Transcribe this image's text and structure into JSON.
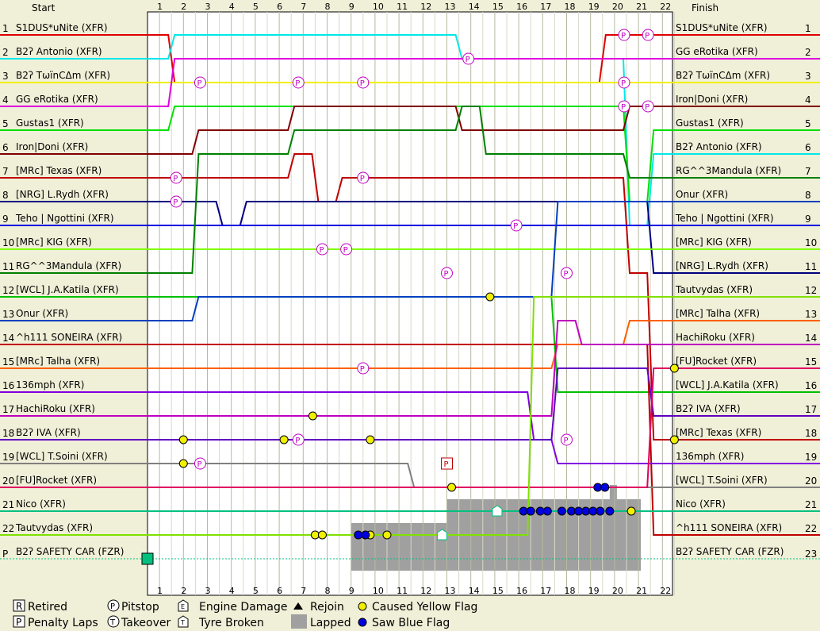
{
  "chart_data": {
    "type": "line",
    "title": "",
    "header": {
      "left": "Start",
      "right": "Finish"
    },
    "laps": [
      "1",
      "2",
      "3",
      "4",
      "5",
      "6",
      "7",
      "8",
      "9",
      "10",
      "11",
      "12",
      "13",
      "14",
      "15",
      "16",
      "17",
      "18",
      "19",
      "20",
      "21",
      "22"
    ],
    "positions": [
      "1",
      "2",
      "3",
      "4",
      "5",
      "6",
      "7",
      "8",
      "9",
      "10",
      "11",
      "12",
      "13",
      "14",
      "15",
      "16",
      "17",
      "18",
      "19",
      "20",
      "21",
      "22"
    ],
    "safety_row": {
      "pos_label": "P",
      "driver": "B2ʔ SAFETY CAR (FZR)",
      "right_end_label": "23"
    },
    "drivers": [
      {
        "name": "S1DUS*uNite (XFR)",
        "color": "#e00000",
        "pos": [
          1,
          3,
          3,
          3,
          3,
          3,
          3,
          3,
          3,
          3,
          3,
          3,
          3,
          3,
          3,
          3,
          3,
          3,
          3,
          1,
          1,
          1,
          1
        ]
      },
      {
        "name": "B2ʔ Antonio (XFR)",
        "color": "#00e8e8",
        "pos": [
          2,
          1,
          1,
          1,
          1,
          1,
          1,
          1,
          1,
          1,
          1,
          1,
          1,
          2,
          2,
          2,
          2,
          2,
          2,
          2,
          9,
          6,
          6
        ]
      },
      {
        "name": "B2ʔ TωïnCΔm (XFR)",
        "color": "#f0f000",
        "pos": [
          3,
          3,
          3,
          3,
          3,
          3,
          3,
          3,
          3,
          3,
          3,
          3,
          3,
          3,
          3,
          3,
          3,
          3,
          3,
          3,
          3,
          3,
          3
        ]
      },
      {
        "name": "GG eRotika (XFR)",
        "color": "#e000e0",
        "pos": [
          4,
          2,
          2,
          2,
          2,
          2,
          2,
          2,
          2,
          2,
          2,
          2,
          2,
          2,
          2,
          2,
          2,
          2,
          2,
          2,
          2,
          2,
          2
        ]
      },
      {
        "name": "Gustas1 (XFR)",
        "color": "#00e000",
        "pos": [
          5,
          4,
          4,
          4,
          4,
          4,
          4,
          4,
          4,
          4,
          4,
          4,
          4,
          4,
          4,
          4,
          4,
          4,
          4,
          4,
          8,
          5,
          5
        ]
      },
      {
        "name": "Iron|Doni (XFR)",
        "color": "#800000",
        "pos": [
          6,
          6,
          5,
          5,
          5,
          5,
          4,
          4,
          4,
          4,
          4,
          4,
          4,
          5,
          5,
          5,
          5,
          5,
          5,
          5,
          4,
          4,
          4
        ]
      },
      {
        "name": "[MRc] Texas (XFR)",
        "color": "#c00000",
        "pos": [
          7,
          7,
          7,
          7,
          7,
          7,
          6,
          8,
          7,
          7,
          7,
          7,
          7,
          7,
          7,
          7,
          7,
          7,
          7,
          7,
          11,
          18,
          18
        ]
      },
      {
        "name": "[NRG] L.Rydh (XFR)",
        "color": "#000080",
        "pos": [
          8,
          8,
          8,
          9,
          8,
          8,
          8,
          8,
          8,
          8,
          8,
          8,
          8,
          8,
          8,
          8,
          8,
          8,
          8,
          8,
          8,
          11,
          11
        ]
      },
      {
        "name": "Teho | Ngottini (XFR)",
        "color": "#0000e0",
        "pos": [
          9,
          9,
          9,
          9,
          9,
          9,
          9,
          9,
          9,
          9,
          9,
          9,
          9,
          9,
          9,
          9,
          9,
          9,
          9,
          9,
          9,
          9,
          9
        ]
      },
      {
        "name": "[MRc] KIG (XFR)",
        "color": "#80ff00",
        "pos": [
          10,
          10,
          10,
          10,
          10,
          10,
          10,
          10,
          10,
          10,
          10,
          10,
          10,
          10,
          10,
          10,
          10,
          10,
          10,
          10,
          10,
          10,
          10
        ]
      },
      {
        "name": "RG^^3Mandula (XFR)",
        "color": "#008000",
        "pos": [
          11,
          11,
          6,
          6,
          6,
          6,
          5,
          5,
          5,
          5,
          5,
          5,
          5,
          4,
          6,
          6,
          6,
          6,
          6,
          6,
          7,
          7,
          7
        ]
      },
      {
        "name": "[WCL] J.A.Katila (XFR)",
        "color": "#00c000",
        "pos": [
          12,
          12,
          12,
          12,
          12,
          12,
          12,
          12,
          12,
          12,
          12,
          12,
          12,
          12,
          12,
          12,
          12,
          16,
          16,
          16,
          16,
          16,
          16
        ]
      },
      {
        "name": "Onur (XFR)",
        "color": "#0040c0",
        "pos": [
          13,
          13,
          12,
          12,
          12,
          12,
          12,
          12,
          12,
          12,
          12,
          12,
          12,
          12,
          12,
          12,
          12,
          8,
          8,
          8,
          8,
          8,
          8
        ]
      },
      {
        "name": "^h111 SONEIRA (XFR)",
        "color": "#c00000",
        "pos": [
          14,
          14,
          14,
          14,
          14,
          14,
          14,
          14,
          14,
          14,
          14,
          14,
          14,
          14,
          14,
          14,
          14,
          14,
          14,
          14,
          14,
          22,
          22
        ]
      },
      {
        "name": "[MRc] Talha (XFR)",
        "color": "#ff6000",
        "pos": [
          15,
          15,
          15,
          15,
          15,
          15,
          15,
          15,
          15,
          15,
          15,
          15,
          15,
          15,
          15,
          15,
          15,
          14,
          14,
          14,
          13,
          13,
          13
        ]
      },
      {
        "name": "136mph (XFR)",
        "color": "#8000e0",
        "pos": [
          16,
          16,
          16,
          16,
          16,
          16,
          16,
          16,
          16,
          16,
          16,
          16,
          16,
          16,
          16,
          16,
          18,
          19,
          19,
          19,
          19,
          19,
          19
        ]
      },
      {
        "name": "HachiRoku (XFR)",
        "color": "#c000c0",
        "pos": [
          17,
          17,
          17,
          17,
          17,
          17,
          17,
          17,
          17,
          17,
          17,
          17,
          17,
          17,
          17,
          17,
          17,
          13,
          14,
          14,
          14,
          14,
          14
        ]
      },
      {
        "name": "B2ʔ IVA (XFR)",
        "color": "#6000c0",
        "pos": [
          18,
          18,
          18,
          18,
          18,
          18,
          18,
          18,
          18,
          18,
          18,
          18,
          18,
          18,
          18,
          18,
          18,
          15,
          15,
          15,
          15,
          17,
          17
        ]
      },
      {
        "name": "[WCL] T.Soini (XFR)",
        "color": "#808080",
        "pos": [
          19,
          19,
          19,
          19,
          19,
          19,
          19,
          19,
          19,
          19,
          19,
          20,
          20,
          20,
          20,
          20,
          20,
          20,
          20,
          20,
          20,
          20,
          20
        ]
      },
      {
        "name": "[FU]Rocket (XFR)",
        "color": "#e00060",
        "pos": [
          20,
          20,
          20,
          20,
          20,
          20,
          20,
          20,
          20,
          20,
          20,
          20,
          20,
          20,
          20,
          20,
          20,
          20,
          20,
          20,
          20,
          15,
          15
        ]
      },
      {
        "name": "Nico (XFR)",
        "color": "#00c080",
        "pos": [
          21,
          21,
          21,
          21,
          21,
          21,
          21,
          21,
          21,
          21,
          21,
          21,
          21,
          21,
          21,
          21,
          21,
          21,
          21,
          21,
          21,
          21,
          21
        ]
      },
      {
        "name": "Tautvydas (XFR)",
        "color": "#80e000",
        "pos": [
          22,
          22,
          22,
          22,
          22,
          22,
          22,
          22,
          22,
          22,
          22,
          22,
          22,
          22,
          22,
          22,
          12,
          12,
          12,
          12,
          12,
          12,
          12
        ]
      }
    ],
    "finish_order": [
      "S1DUS*uNite (XFR)",
      "GG eRotika (XFR)",
      "B2ʔ TωïnCΔm (XFR)",
      "Iron|Doni (XFR)",
      "Gustas1 (XFR)",
      "B2ʔ Antonio (XFR)",
      "RG^^3Mandula (XFR)",
      "Onur (XFR)",
      "Teho | Ngottini (XFR)",
      "[MRc] KIG (XFR)",
      "[NRG] L.Rydh (XFR)",
      "Tautvydas (XFR)",
      "[MRc] Talha (XFR)",
      "HachiRoku (XFR)",
      "[FU]Rocket (XFR)",
      "[WCL] J.A.Katila (XFR)",
      "B2ʔ IVA (XFR)",
      "[MRc] Texas (XFR)",
      "136mph (XFR)",
      "[WCL] T.Soini (XFR)",
      "Nico (XFR)",
      "^h111 SONEIRA (XFR)"
    ],
    "finish_right_labels": [
      "1",
      "2",
      "3",
      "4",
      "5",
      "6",
      "7",
      "8",
      "9",
      "10",
      "11",
      "12",
      "13",
      "14",
      "15",
      "16",
      "17",
      "18",
      "19",
      "20",
      "21",
      "22"
    ],
    "finish_right_label_22": "22",
    "pitstops": [
      {
        "lap": 2.2,
        "pos": 3
      },
      {
        "lap": 6.3,
        "pos": 3
      },
      {
        "lap": 9.0,
        "pos": 3
      },
      {
        "lap": 1.2,
        "pos": 7
      },
      {
        "lap": 1.2,
        "pos": 8
      },
      {
        "lap": 7.3,
        "pos": 10
      },
      {
        "lap": 8.3,
        "pos": 10
      },
      {
        "lap": 9.0,
        "pos": 7
      },
      {
        "lap": 12.5,
        "pos": 11
      },
      {
        "lap": 13.4,
        "pos": 2
      },
      {
        "lap": 15.4,
        "pos": 9
      },
      {
        "lap": 17.5,
        "pos": 11
      },
      {
        "lap": 19.9,
        "pos": 1
      },
      {
        "lap": 20.9,
        "pos": 1
      },
      {
        "lap": 19.9,
        "pos": 3
      },
      {
        "lap": 19.9,
        "pos": 4
      },
      {
        "lap": 20.9,
        "pos": 4
      },
      {
        "lap": 9.0,
        "pos": 15
      },
      {
        "lap": 6.3,
        "pos": 18
      },
      {
        "lap": 2.2,
        "pos": 19
      },
      {
        "lap": 17.5,
        "pos": 18
      }
    ],
    "penalty": [
      {
        "lap": 12.5,
        "pos": 19
      }
    ],
    "yellow_flags": [
      {
        "lap": 1.5,
        "pos": 18
      },
      {
        "lap": 1.5,
        "pos": 19
      },
      {
        "lap": 5.7,
        "pos": 18
      },
      {
        "lap": 6.9,
        "pos": 17
      },
      {
        "lap": 7.0,
        "pos": 22
      },
      {
        "lap": 7.3,
        "pos": 22
      },
      {
        "lap": 9.3,
        "pos": 18
      },
      {
        "lap": 9.3,
        "pos": 22
      },
      {
        "lap": 10.0,
        "pos": 22
      },
      {
        "lap": 12.7,
        "pos": 20
      },
      {
        "lap": 14.3,
        "pos": 12
      },
      {
        "lap": 20.2,
        "pos": 21
      },
      {
        "lap": 22.0,
        "pos": 15
      },
      {
        "lap": 22.0,
        "pos": 18
      }
    ],
    "blue_flags": [
      {
        "lap": 8.8,
        "pos": 22
      },
      {
        "lap": 9.1,
        "pos": 22
      },
      {
        "lap": 15.7,
        "pos": 21
      },
      {
        "lap": 16.0,
        "pos": 21
      },
      {
        "lap": 16.4,
        "pos": 21
      },
      {
        "lap": 16.7,
        "pos": 21
      },
      {
        "lap": 17.3,
        "pos": 21
      },
      {
        "lap": 17.7,
        "pos": 21
      },
      {
        "lap": 18.0,
        "pos": 21
      },
      {
        "lap": 18.3,
        "pos": 21
      },
      {
        "lap": 18.6,
        "pos": 21
      },
      {
        "lap": 18.9,
        "pos": 21
      },
      {
        "lap": 19.3,
        "pos": 21
      },
      {
        "lap": 18.8,
        "pos": 20
      },
      {
        "lap": 19.1,
        "pos": 20
      }
    ],
    "engine_damage": [
      {
        "lap": 14.6,
        "pos": 21
      },
      {
        "lap": 12.3,
        "pos": 22
      }
    ],
    "lapped_regions": [
      {
        "lap_from": 8.5,
        "lap_to": 12.5,
        "pos_from": 21.5,
        "pos_to": 23.5
      },
      {
        "lap_from": 12.5,
        "lap_to": 20.6,
        "pos_from": 20.5,
        "pos_to": 23.5
      },
      {
        "lap_from": 19.3,
        "lap_to": 19.6,
        "pos_from": 19.9,
        "pos_to": 20.5
      }
    ],
    "grid": true
  },
  "legend": {
    "retired": "Retired",
    "penalty": "Penalty Laps",
    "pitstop": "Pitstop",
    "takeover": "Takeover",
    "engine": "Engine Damage",
    "tyre": "Tyre Broken",
    "rejoin": "Rejoin",
    "lapped": "Lapped",
    "yellow": "Caused Yellow Flag",
    "blue": "Saw Blue Flag"
  },
  "colors": {
    "background": "#f0f0d8",
    "plot": "#ffffff",
    "grid": "#b8b8a0",
    "lapped": "#a0a0a0"
  }
}
